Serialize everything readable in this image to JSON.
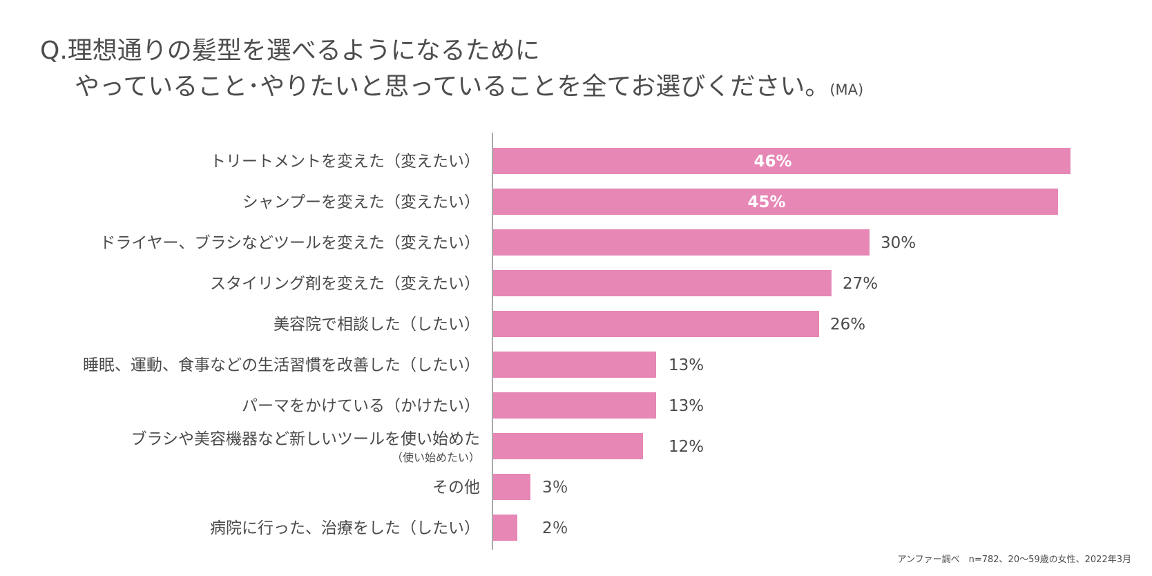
{
  "title": {
    "line1": "Q.理想通りの髪型を選べるようになるために",
    "line2": "やっていること･やりたいと思っていることを全てお選びください。",
    "suffix": "(MA)"
  },
  "source": "アンファー調べ　n=782、20～59歳の女性、2022年3月",
  "colors": {
    "bar": "#e787b5",
    "axis": "#aaaaaa",
    "text": "#4a4a4a"
  },
  "chart_data": {
    "type": "bar",
    "orientation": "horizontal",
    "title": "Q.理想通りの髪型を選べるようになるために やっていること･やりたいと思っていることを全てお選びください。(MA)",
    "xlabel": "",
    "ylabel": "",
    "xlim": [
      0,
      50
    ],
    "grid": false,
    "legend": "none",
    "unit": "%",
    "categories": [
      "トリートメントを変えた（変えたい）",
      "シャンプーを変えた（変えたい）",
      "ドライヤー、ブラシなどツールを変えた（変えたい）",
      "スタイリング剤を変えた（変えたい）",
      "美容院で相談した（したい）",
      "睡眠、運動、食事などの生活習慣を改善した（したい）",
      "パーマをかけている（かけたい）",
      "ブラシや美容機器など新しいツールを使い始めた",
      "その他",
      "病院に行った、治療をした（したい）"
    ],
    "category_sublabels": [
      "",
      "",
      "",
      "",
      "",
      "",
      "",
      "（使い始めたい）",
      "",
      ""
    ],
    "values": [
      46,
      45,
      30,
      27,
      26,
      13,
      13,
      12,
      3,
      2
    ],
    "value_labels": [
      "46%",
      "45%",
      "30%",
      "27%",
      "26%",
      "13%",
      "13%",
      "12%",
      "3％",
      "2％"
    ],
    "label_inside": [
      true,
      true,
      false,
      false,
      false,
      false,
      false,
      false,
      false,
      false
    ]
  }
}
